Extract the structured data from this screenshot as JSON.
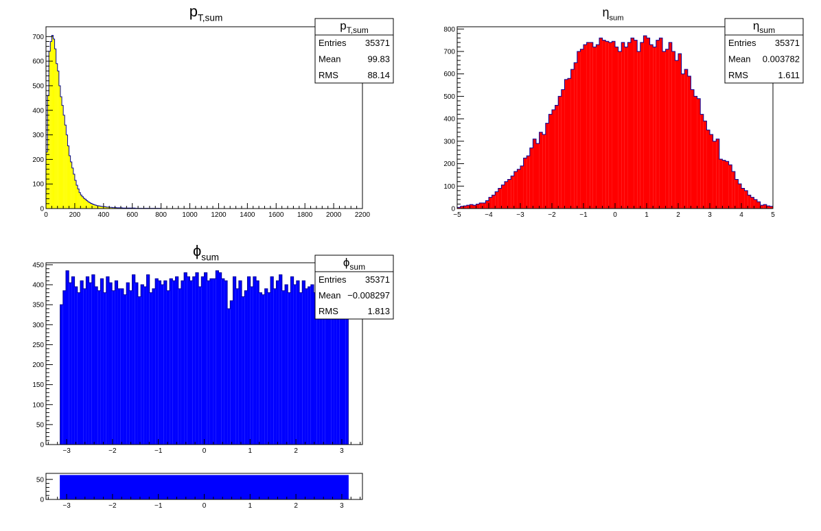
{
  "chart_data": [
    {
      "id": "pt",
      "type": "bar",
      "histogram": true,
      "title": "p",
      "title_sub": "T,sum",
      "fill_color": "#ffff00",
      "line_color": "#000099",
      "xlim": [
        0,
        2200
      ],
      "ylim": [
        0,
        740
      ],
      "x_ticks": [
        "0",
        "200",
        "400",
        "600",
        "800",
        "1000",
        "1200",
        "1400",
        "1600",
        "1800",
        "2000",
        "2200"
      ],
      "x_tick_values": [
        0,
        200,
        400,
        600,
        800,
        1000,
        1200,
        1400,
        1600,
        1800,
        2000,
        2200
      ],
      "y_ticks": [
        "0",
        "100",
        "200",
        "300",
        "400",
        "500",
        "600",
        "700"
      ],
      "y_tick_values": [
        0,
        100,
        200,
        300,
        400,
        500,
        600,
        700
      ],
      "bin_width": 10,
      "bins_start": 0,
      "values": [
        230,
        460,
        640,
        680,
        705,
        690,
        650,
        590,
        560,
        500,
        455,
        420,
        380,
        340,
        300,
        255,
        215,
        190,
        165,
        140,
        115,
        95,
        80,
        65,
        55,
        48,
        42,
        38,
        32,
        28,
        24,
        21,
        18,
        16,
        14,
        12,
        11,
        10,
        9,
        8,
        8,
        7,
        6,
        6,
        5,
        5,
        4,
        4,
        4,
        3,
        3,
        3,
        3,
        2,
        2,
        2,
        2,
        2,
        2,
        2,
        2,
        2,
        1,
        1,
        1,
        1,
        1,
        1,
        1,
        1,
        1,
        1,
        1,
        1,
        1,
        1,
        1,
        1,
        1,
        1
      ],
      "stats": {
        "title": "p",
        "title_sub": "T,sum",
        "rows": [
          {
            "label": "Entries",
            "value": "35371"
          },
          {
            "label": "Mean",
            "value": "99.83"
          },
          {
            "label": "RMS",
            "value": "88.14"
          }
        ]
      }
    },
    {
      "id": "eta",
      "type": "bar",
      "histogram": true,
      "title": "η",
      "title_sub": "sum",
      "fill_color": "#ff0000",
      "line_color": "#000099",
      "xlim": [
        -5,
        5
      ],
      "ylim": [
        0,
        810
      ],
      "x_ticks": [
        "−5",
        "−4",
        "−3",
        "−2",
        "−1",
        "0",
        "1",
        "2",
        "3",
        "4",
        "5"
      ],
      "x_tick_values": [
        -5,
        -4,
        -3,
        -2,
        -1,
        0,
        1,
        2,
        3,
        4,
        5
      ],
      "y_ticks": [
        "0",
        "100",
        "200",
        "300",
        "400",
        "500",
        "600",
        "700",
        "800"
      ],
      "y_tick_values": [
        0,
        100,
        200,
        300,
        400,
        500,
        600,
        700,
        800
      ],
      "bin_width": 0.1,
      "bins_start": -5,
      "values": [
        5,
        10,
        12,
        15,
        18,
        15,
        20,
        25,
        25,
        35,
        50,
        60,
        75,
        90,
        105,
        120,
        130,
        145,
        165,
        175,
        190,
        225,
        235,
        270,
        310,
        290,
        340,
        330,
        380,
        420,
        440,
        460,
        500,
        530,
        575,
        580,
        620,
        650,
        700,
        710,
        730,
        740,
        740,
        720,
        730,
        760,
        750,
        745,
        740,
        745,
        720,
        700,
        740,
        720,
        740,
        760,
        750,
        700,
        740,
        770,
        760,
        730,
        720,
        750,
        760,
        700,
        710,
        740,
        700,
        660,
        690,
        600,
        620,
        590,
        530,
        500,
        490,
        420,
        390,
        350,
        330,
        300,
        310,
        220,
        215,
        210,
        195,
        165,
        130,
        110,
        90,
        80,
        60,
        50,
        40,
        30,
        15,
        18,
        12,
        10
      ],
      "stats": {
        "title": "η",
        "title_sub": "sum",
        "rows": [
          {
            "label": "Entries",
            "value": "35371"
          },
          {
            "label": "Mean",
            "value": "0.003782"
          },
          {
            "label": "RMS",
            "value": "1.611"
          }
        ]
      }
    },
    {
      "id": "phi",
      "type": "bar",
      "histogram": true,
      "title": "ϕ",
      "title_sub": "sum",
      "fill_color": "#0000ff",
      "line_color": "#000099",
      "xlim": [
        -3.45,
        3.45
      ],
      "ylim": [
        0,
        455
      ],
      "x_ticks": [
        "−3",
        "−2",
        "−1",
        "0",
        "1",
        "2",
        "3"
      ],
      "x_tick_values": [
        -3,
        -2,
        -1,
        0,
        1,
        2,
        3
      ],
      "y_ticks": [
        "0",
        "50",
        "100",
        "150",
        "200",
        "250",
        "300",
        "350",
        "400",
        "450"
      ],
      "y_tick_values": [
        0,
        50,
        100,
        150,
        200,
        250,
        300,
        350,
        400,
        450
      ],
      "bin_width": 0.0628318,
      "bins_start": -3.14159,
      "values": [
        350,
        385,
        435,
        405,
        420,
        395,
        380,
        410,
        390,
        420,
        405,
        425,
        395,
        385,
        415,
        380,
        420,
        405,
        385,
        410,
        390,
        390,
        375,
        405,
        385,
        425,
        405,
        370,
        400,
        395,
        425,
        380,
        390,
        415,
        410,
        400,
        410,
        385,
        415,
        410,
        420,
        390,
        410,
        430,
        420,
        410,
        420,
        430,
        395,
        420,
        430,
        410,
        415,
        415,
        435,
        430,
        415,
        410,
        340,
        360,
        420,
        390,
        410,
        370,
        385,
        420,
        395,
        420,
        410,
        380,
        375,
        390,
        380,
        420,
        390,
        410,
        425,
        385,
        400,
        380,
        420,
        400,
        410,
        380,
        410,
        390,
        395,
        400,
        380,
        395,
        410,
        390,
        400,
        395,
        400,
        390,
        405,
        390,
        400,
        385
      ],
      "stats": {
        "title": "ϕ",
        "title_sub": "sum",
        "rows": [
          {
            "label": "Entries",
            "value": "35371"
          },
          {
            "label": "Mean",
            "value": "−0.008297"
          },
          {
            "label": "RMS",
            "value": "1.813"
          }
        ]
      }
    },
    {
      "id": "phi_small",
      "type": "bar",
      "histogram": true,
      "title": "",
      "fill_color": "#0000ff",
      "line_color": "#0000ff",
      "xlim": [
        -3.45,
        3.45
      ],
      "ylim": [
        0,
        65
      ],
      "x_ticks": [
        "−3",
        "−2",
        "−1",
        "0",
        "1",
        "2",
        "3"
      ],
      "x_tick_values": [
        -3,
        -2,
        -1,
        0,
        1,
        2,
        3
      ],
      "y_ticks": [
        "0",
        "50"
      ],
      "y_tick_values": [
        0,
        50
      ],
      "bin_width": 6.28318,
      "bins_start": -3.14159,
      "values": [
        60
      ]
    }
  ]
}
